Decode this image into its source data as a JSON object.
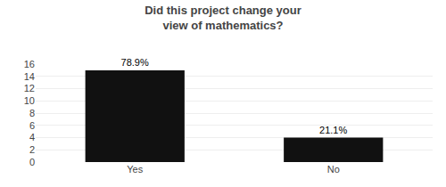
{
  "chart_data": {
    "type": "bar",
    "title": "Did this project change your\nview of mathematics?",
    "categories": [
      "Yes",
      "No"
    ],
    "values": [
      15,
      4
    ],
    "value_labels": [
      "78.9%",
      "21.1%"
    ],
    "data_labels": true,
    "color": "#111111",
    "ylim": [
      0,
      16
    ],
    "yticks": [
      0,
      2,
      4,
      6,
      8,
      10,
      12,
      14,
      16
    ],
    "grid": true
  }
}
